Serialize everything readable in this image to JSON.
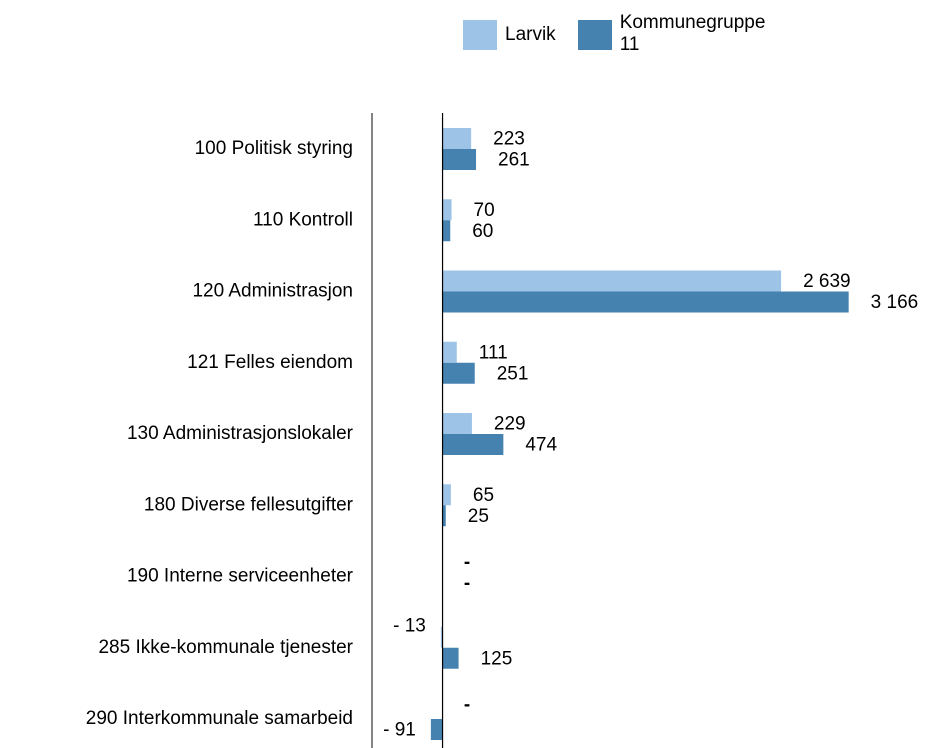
{
  "chart_data": {
    "type": "hbar",
    "categories": [
      "100 Politisk styring",
      "110 Kontroll",
      "120 Administrasjon",
      "121 Felles eiendom",
      "130 Administrasjonslokaler",
      "180 Diverse fellesutgifter",
      "190 Interne serviceenheter",
      "285 Ikke-kommunale tjenester",
      "290 Interkommunale samarbeid"
    ],
    "series": [
      {
        "name": "Larvik",
        "color": "#9dc3e6",
        "values": [
          223,
          70,
          2639,
          111,
          229,
          65,
          null,
          -13,
          null
        ],
        "value_labels": [
          "223",
          "70",
          "2 639",
          "111",
          "229",
          "65",
          "-",
          "- 13",
          "-"
        ]
      },
      {
        "name": "Kommunegruppe 11",
        "color": "#4682b0",
        "values": [
          261,
          60,
          3166,
          251,
          474,
          25,
          null,
          125,
          -91
        ],
        "value_labels": [
          "261",
          "60",
          "3 166",
          "251",
          "474",
          "25",
          "-",
          "125",
          "- 91"
        ]
      }
    ],
    "xlim": [
      -550,
      3800
    ]
  }
}
